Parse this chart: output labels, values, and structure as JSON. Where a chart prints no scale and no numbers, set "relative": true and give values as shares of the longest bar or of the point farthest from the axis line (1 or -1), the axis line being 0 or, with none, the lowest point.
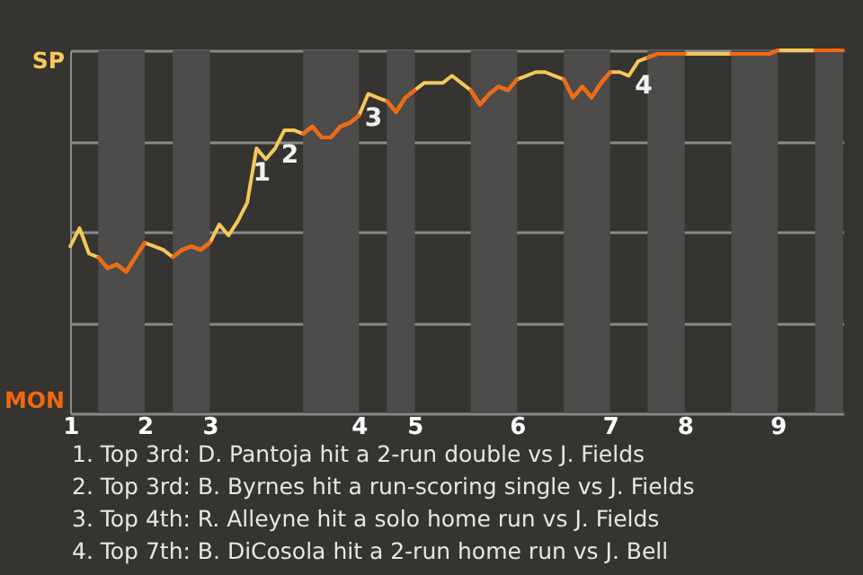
{
  "chart_data": {
    "type": "line",
    "categories": [
      "1",
      null,
      null,
      null,
      null,
      null,
      null,
      null,
      "2",
      null,
      null,
      null,
      null,
      null,
      null,
      "3",
      null,
      null,
      null,
      null,
      null,
      null,
      null,
      null,
      null,
      null,
      null,
      null,
      null,
      null,
      null,
      "4",
      null,
      null,
      null,
      null,
      null,
      "5",
      null,
      null,
      null,
      null,
      null,
      null,
      null,
      null,
      null,
      null,
      "6",
      null,
      null,
      null,
      null,
      null,
      null,
      null,
      null,
      null,
      "7",
      null,
      null,
      null,
      null,
      null,
      null,
      null,
      "8",
      null,
      null,
      null,
      null,
      null,
      null,
      null,
      null,
      null,
      "9",
      null,
      null,
      null,
      null,
      null,
      null,
      null
    ],
    "relative": true,
    "series": [
      {
        "color": "#f7c75a",
        "values": [
          0.46,
          0.51,
          0.44,
          0.43,
          0.4,
          0.41,
          0.39,
          0.43,
          0.47,
          0.46,
          0.45,
          0.43,
          0.45,
          0.46,
          0.45,
          0.47,
          0.52,
          0.49,
          0.53,
          0.58,
          0.73,
          0.7,
          0.73,
          0.78,
          0.78,
          0.77,
          0.79,
          0.76,
          0.76,
          0.79,
          0.8,
          0.82,
          0.88,
          0.87,
          0.86,
          0.83,
          0.87,
          0.89,
          0.91,
          0.91,
          0.91,
          0.93,
          0.91,
          0.89,
          0.85,
          0.88,
          0.9,
          0.89,
          0.92,
          0.93,
          0.94,
          0.94,
          0.93,
          0.92,
          0.87,
          0.9,
          0.87,
          0.91,
          0.94,
          0.94,
          0.93,
          0.97,
          0.98,
          0.99,
          0.99,
          0.99,
          0.99,
          0.99,
          0.99,
          0.99,
          0.99,
          0.99,
          0.99,
          0.99,
          0.99,
          0.99,
          1,
          1,
          1,
          1,
          1,
          null,
          null,
          null
        ]
      },
      {
        "color": "#f2680f",
        "values": [
          null,
          null,
          null,
          0.43,
          0.4,
          0.41,
          0.39,
          0.43,
          0.47,
          null,
          null,
          0.43,
          0.45,
          0.46,
          0.45,
          0.47,
          null,
          null,
          null,
          null,
          null,
          null,
          null,
          null,
          null,
          0.77,
          0.79,
          0.76,
          0.76,
          0.79,
          0.8,
          0.82,
          null,
          null,
          0.86,
          0.83,
          0.87,
          0.89,
          null,
          null,
          null,
          null,
          null,
          0.89,
          0.85,
          0.88,
          0.9,
          0.89,
          0.92,
          null,
          null,
          null,
          null,
          0.92,
          0.87,
          0.9,
          0.87,
          0.91,
          0.94,
          null,
          null,
          null,
          0.98,
          0.99,
          0.99,
          0.99,
          0.99,
          null,
          null,
          null,
          null,
          0.99,
          0.99,
          0.99,
          0.99,
          0.99,
          1,
          null,
          null,
          null,
          1,
          1,
          1,
          1
        ]
      }
    ],
    "grid": "y",
    "marker": "none",
    "line_style": "solid",
    "annotations": [
      "SP",
      "MON",
      {
        "text": "1",
        "y": 0.73
      },
      {
        "text": "2",
        "y": 0.78
      },
      {
        "text": "3",
        "y": 0.88
      },
      {
        "text": "4",
        "y": 0.97
      },
      "1. Top 3rd: D. Pantoja hit a 2-run double vs J. Fields",
      "2. Top 3rd: B. Byrnes hit a run-scoring single vs J. Fields",
      "3. Top 4th: R. Alleyne hit a solo home run vs J. Fields",
      "4. Top 7th: B. DiCosola hit a 2-run home run vs J. Bell"
    ]
  }
}
